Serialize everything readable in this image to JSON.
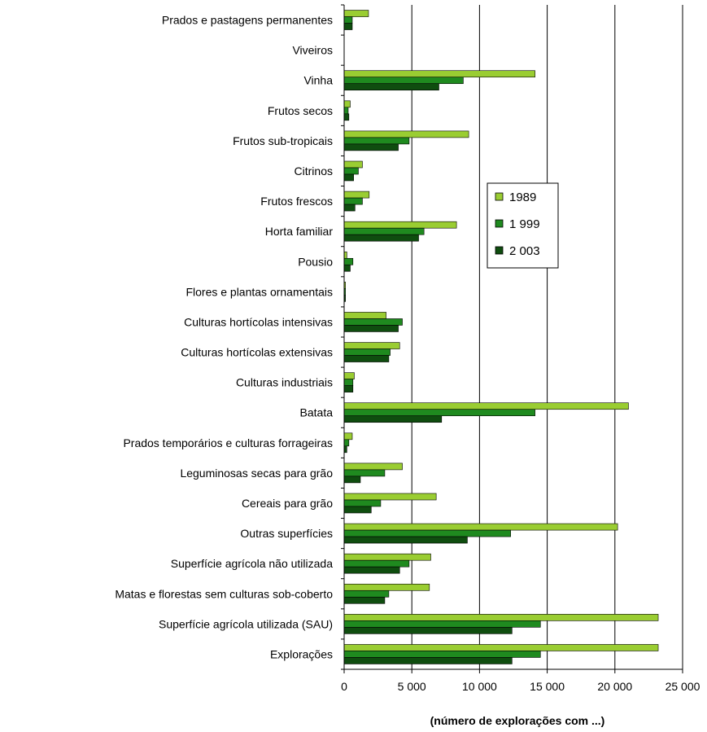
{
  "chart_data": {
    "type": "bar",
    "orientation": "horizontal",
    "categories": [
      "Prados e pastagens permanentes",
      "Viveiros",
      "Vinha",
      "Frutos secos",
      "Frutos sub-tropicais",
      "Citrinos",
      "Frutos frescos",
      "Horta familiar",
      "Pousio",
      "Flores e plantas ornamentais",
      "Culturas hortícolas intensivas",
      "Culturas hortícolas extensivas",
      "Culturas industriais",
      "Batata",
      "Prados temporários e culturas forrageiras",
      "Leguminosas secas para grão",
      "Cereais para grão",
      "Outras superfícies",
      "Superfície agrícola não utilizada",
      "Matas e florestas sem culturas sob-coberto",
      "Superfície agrícola utilizada (SAU)",
      "Explorações"
    ],
    "series": [
      {
        "name": "1989",
        "color": "#9acd32",
        "values": [
          1800,
          0,
          14100,
          450,
          9200,
          1350,
          1850,
          8300,
          200,
          100,
          3100,
          4100,
          750,
          21000,
          600,
          4300,
          6800,
          20200,
          6400,
          6300,
          23200,
          23200
        ]
      },
      {
        "name": "1 999",
        "color": "#1f8a1f",
        "values": [
          600,
          0,
          8800,
          300,
          4800,
          1050,
          1350,
          5900,
          650,
          100,
          4300,
          3400,
          650,
          14100,
          350,
          3000,
          2700,
          12300,
          4800,
          3300,
          14500,
          14500
        ]
      },
      {
        "name": "2 003",
        "color": "#0f4d0f",
        "values": [
          600,
          0,
          7000,
          350,
          4000,
          700,
          800,
          5500,
          450,
          100,
          4000,
          3300,
          650,
          7200,
          200,
          1200,
          2000,
          9100,
          4100,
          3000,
          12400,
          12400
        ]
      }
    ],
    "xlim": [
      0,
      25000
    ],
    "xticks": [
      0,
      5000,
      10000,
      15000,
      20000,
      25000
    ],
    "xtick_labels": [
      "0",
      "5 000",
      "10 000",
      "15 000",
      "20 000",
      "25 000"
    ],
    "xlabel": "(número de explorações com ...)",
    "grid": "vertical",
    "legend_position": "center-right"
  }
}
